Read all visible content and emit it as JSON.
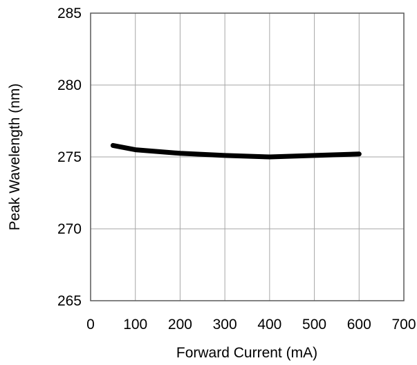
{
  "chart_data": {
    "type": "line",
    "title": "",
    "xlabel": "Forward Current (mA)",
    "ylabel": "Peak Wavelength (nm)",
    "xlim": [
      0,
      700
    ],
    "ylim": [
      265,
      285
    ],
    "xticks": [
      0,
      100,
      200,
      300,
      400,
      500,
      600,
      700
    ],
    "yticks": [
      265,
      270,
      275,
      280,
      285
    ],
    "grid": true,
    "legend": "none",
    "series": [
      {
        "color": "#000000",
        "points": [
          {
            "x": 50,
            "y": 275.8
          },
          {
            "x": 100,
            "y": 275.5
          },
          {
            "x": 200,
            "y": 275.25
          },
          {
            "x": 300,
            "y": 275.1
          },
          {
            "x": 400,
            "y": 275.0
          },
          {
            "x": 500,
            "y": 275.1
          },
          {
            "x": 600,
            "y": 275.2
          }
        ]
      }
    ]
  }
}
